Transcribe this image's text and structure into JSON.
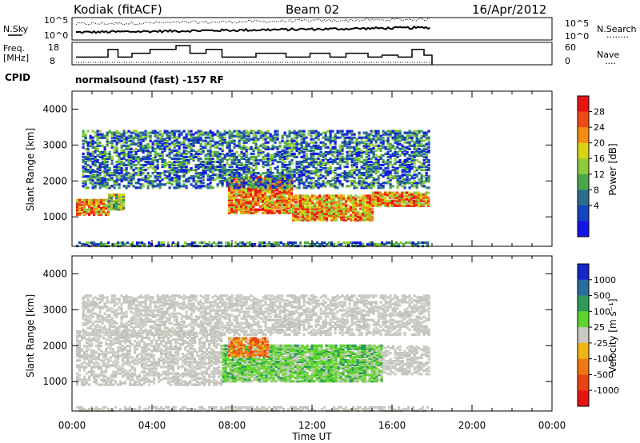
{
  "header": {
    "station": "Kodiak (fitACF)",
    "beam": "Beam 02",
    "date": "16/Apr/2012",
    "cpid_label": "CPID",
    "cpid_text": "normalsound (fast) -157 RF"
  },
  "top_panels": {
    "nsky": {
      "left_label": "N.Sky",
      "left_ticks": [
        "10^5",
        "10^0"
      ],
      "right_ticks": [
        "10^5",
        "10^0"
      ],
      "right_label": "N.Search",
      "legend_mark": "........"
    },
    "freq": {
      "left_label_1": "Freq.",
      "left_label_2": "[MHz]",
      "left_ticks": [
        "18",
        "8"
      ],
      "right_ticks": [
        "60",
        "0"
      ],
      "right_label": "Nave",
      "legend_mark": "....",
      "freq_steps": [
        [
          0.2,
          12
        ],
        [
          1.8,
          16
        ],
        [
          2.3,
          12
        ],
        [
          3.0,
          14
        ],
        [
          3.9,
          16
        ],
        [
          5.2,
          18
        ],
        [
          5.9,
          14
        ],
        [
          6.7,
          16
        ],
        [
          7.5,
          12
        ],
        [
          9.2,
          14
        ],
        [
          10.7,
          12
        ],
        [
          11.9,
          14
        ],
        [
          12.9,
          12
        ],
        [
          13.7,
          14
        ],
        [
          14.8,
          12
        ],
        [
          15.5,
          13
        ],
        [
          16.3,
          12
        ],
        [
          17.0,
          16
        ],
        [
          17.6,
          13
        ],
        [
          18.0,
          8
        ]
      ]
    }
  },
  "chart_data": [
    {
      "type": "heatmap",
      "name": "power",
      "ylabel": "Slant Range [km]",
      "yticks": [
        "4000",
        "3000",
        "2000",
        "1000"
      ],
      "ylim": [
        180,
        4500
      ],
      "xlim_hours": [
        0,
        24
      ],
      "colorbar_label": "Power [dB]",
      "colorbar_ticks": [
        "28",
        "24",
        "20",
        "16",
        "12",
        "8",
        "4"
      ],
      "colorbar_colors": [
        "#e81414",
        "#ee4a14",
        "#f48c14",
        "#d8d414",
        "#8ccc3c",
        "#4aa84a",
        "#2c6c8c",
        "#1444c0",
        "#1414e8"
      ],
      "regions": [
        {
          "t0": 0.2,
          "t1": 1.8,
          "r0": 1050,
          "r1": 1500,
          "level": "high"
        },
        {
          "t0": 1.8,
          "t1": 2.6,
          "r0": 1200,
          "r1": 1650,
          "level": "mid"
        },
        {
          "t0": 7.8,
          "t1": 11.0,
          "r0": 1100,
          "r1": 2100,
          "level": "high"
        },
        {
          "t0": 11.0,
          "t1": 15.0,
          "r0": 900,
          "r1": 1600,
          "level": "high"
        },
        {
          "t0": 15.0,
          "t1": 17.8,
          "r0": 1300,
          "r1": 1700,
          "level": "high"
        },
        {
          "t0": 0.5,
          "t1": 17.8,
          "r0": 1800,
          "r1": 3400,
          "level": "low"
        },
        {
          "t0": 0.2,
          "t1": 17.8,
          "r0": 180,
          "r1": 300,
          "level": "low"
        }
      ]
    },
    {
      "type": "heatmap",
      "name": "velocity",
      "ylabel": "Slant Range [km]",
      "yticks": [
        "4000",
        "3000",
        "2000",
        "1000"
      ],
      "ylim": [
        180,
        4500
      ],
      "xlim_hours": [
        0,
        24
      ],
      "xticks": [
        "00:00",
        "04:00",
        "08:00",
        "12:00",
        "16:00",
        "20:00",
        "00:00"
      ],
      "xlabel": "Time UT",
      "colorbar_label": "Velocity [m s⁻¹]",
      "colorbar_ticks": [
        "1000",
        "500",
        "100",
        "25",
        "-25",
        "-100",
        "-500",
        "-1000"
      ],
      "colorbar_colors": [
        "#1428c8",
        "#2c6c9c",
        "#2c9c5c",
        "#5cd42c",
        "#c8c8c0",
        "#f0b414",
        "#f07814",
        "#e84414",
        "#e81414"
      ],
      "regions": [
        {
          "t0": 0.2,
          "t1": 7.5,
          "r0": 900,
          "r1": 2400,
          "level": "grey"
        },
        {
          "t0": 7.5,
          "t1": 15.5,
          "r0": 1000,
          "r1": 2000,
          "level": "green"
        },
        {
          "t0": 7.8,
          "t1": 9.8,
          "r0": 1700,
          "r1": 2200,
          "level": "orange"
        },
        {
          "t0": 15.5,
          "t1": 17.8,
          "r0": 1200,
          "r1": 2000,
          "level": "grey"
        },
        {
          "t0": 0.5,
          "t1": 17.8,
          "r0": 2300,
          "r1": 3400,
          "level": "grey"
        },
        {
          "t0": 0.2,
          "t1": 17.8,
          "r0": 180,
          "r1": 300,
          "level": "grey"
        }
      ]
    }
  ]
}
